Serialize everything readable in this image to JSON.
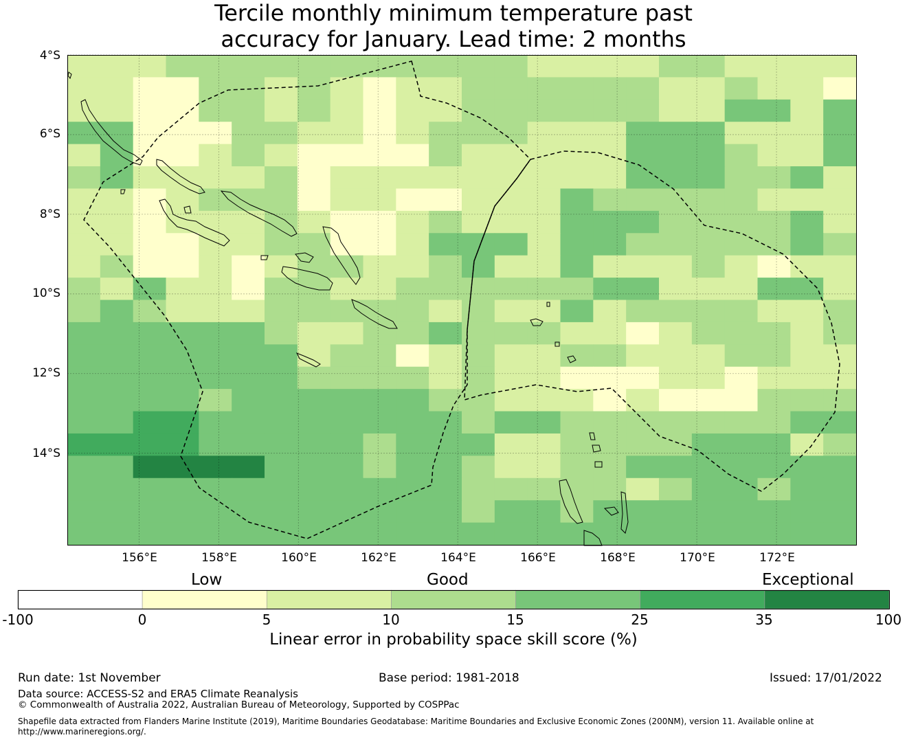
{
  "title": {
    "line1": "Tercile monthly minimum temperature past",
    "line2": "accuracy for January. Lead time: 2 months"
  },
  "map": {
    "lon_range": [
      154.2,
      174.0
    ],
    "lat_range": [
      -4.0,
      -16.3
    ],
    "lat_labels": [
      "4°S",
      "6°S",
      "8°S",
      "10°S",
      "12°S",
      "14°S"
    ],
    "lat_values": [
      -4,
      -6,
      -8,
      -10,
      -12,
      -14
    ],
    "lon_labels": [
      "156°E",
      "158°E",
      "160°E",
      "162°E",
      "164°E",
      "166°E",
      "168°E",
      "170°E",
      "172°E"
    ],
    "lon_values": [
      156,
      158,
      160,
      162,
      164,
      166,
      168,
      170,
      172
    ],
    "grid_cols": 24,
    "grid_rows": 22,
    "grid_levels": [
      "222333333333332222332222",
      "221133232122333333223221",
      "221133232122333333224424",
      "441113322123332224442224",
      "241123211113222224443224",
      "342222312222222224443342",
      "221233312211222433333222",
      "221222321123222444333342",
      "221122331124442443333343",
      "231121233223422422232122",
      "324221332233333344222442",
      "343222333332322423333223",
      "444444322334333221233323",
      "444444423312322332223322",
      "444444433332322111221222",
      "444434444443322212111333",
      "445544444444344333333344",
      "555544444344422333344423",
      "446666444344322334444444",
      "444444444444333332344344",
      "444444444444344344444444",
      "444444444444444444444444"
    ],
    "level_colors": [
      "#ffffff",
      "#ffffcc",
      "#d9f0a3",
      "#addd8e",
      "#78c679",
      "#41ab5d",
      "#238443"
    ]
  },
  "colorbar": {
    "category_labels": {
      "low": "Low",
      "good": "Good",
      "exceptional": "Exceptional"
    },
    "tick_labels": [
      "-100",
      "0",
      "5",
      "10",
      "15",
      "25",
      "35",
      "100"
    ],
    "label": "Linear error in probability space skill score (%)"
  },
  "footer": {
    "run_date": "Run date: 1st November",
    "base_period": "Base period: 1981-2018",
    "issued": "Issued: 17/01/2022",
    "data_source": "Data source: ACCESS-S2 and ERA5 Climate Reanalysis",
    "copyright": "© Commonwealth of Australia 2022, Australian Bureau of Meteorology, Supported by COSPPac",
    "shapefile_line1": "Shapefile data extracted from Flanders Marine Institute (2019), Maritime Boundaries Geodatabase: Maritime Boundaries and Exclusive Economic Zones (200NM), version 11. Available online at",
    "shapefile_line2": "http://www.marineregions.org/."
  }
}
